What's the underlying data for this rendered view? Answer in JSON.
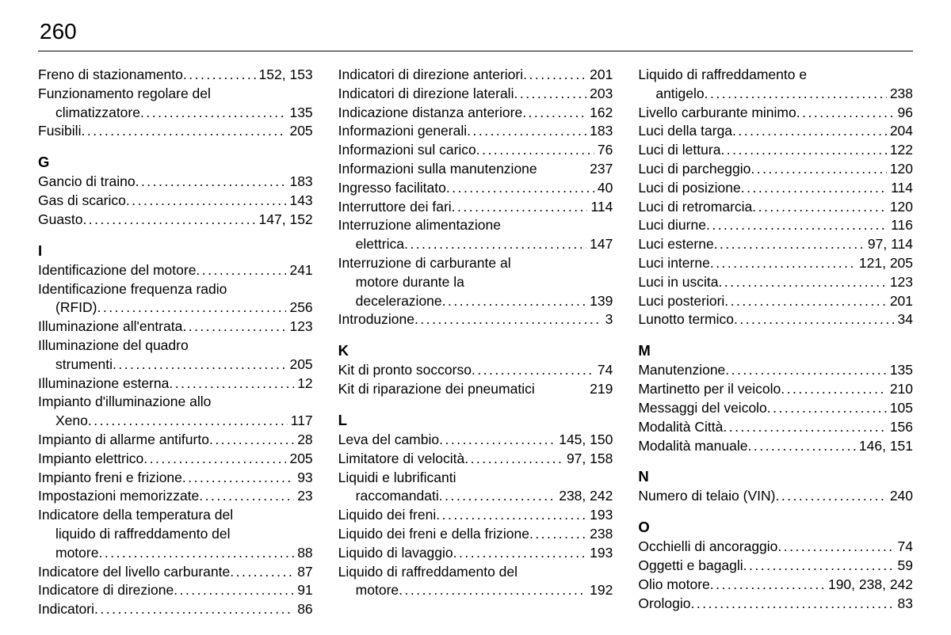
{
  "page_number": "260",
  "columns": [
    {
      "sections": [
        {
          "entries": [
            {
              "label": "Freno di stazionamento",
              "page": "152, 153"
            },
            {
              "label_lines": [
                "Funzionamento regolare del",
                "climatizzatore"
              ],
              "page": "135"
            },
            {
              "label": "Fusibili",
              "page": "205"
            }
          ]
        },
        {
          "letter": "G",
          "entries": [
            {
              "label": "Gancio di traino",
              "page": "183"
            },
            {
              "label": "Gas di scarico",
              "page": "143"
            },
            {
              "label": "Guasto",
              "page": "147, 152"
            }
          ]
        },
        {
          "letter": "I",
          "entries": [
            {
              "label": "Identificazione del motore",
              "page": "241"
            },
            {
              "label_lines": [
                "Identificazione frequenza radio",
                "(RFID)"
              ],
              "page": "256"
            },
            {
              "label": "Illuminazione all'entrata",
              "page": "123"
            },
            {
              "label_lines": [
                "Illuminazione del quadro",
                "strumenti"
              ],
              "page": "205"
            },
            {
              "label": "Illuminazione esterna",
              "page": "12"
            },
            {
              "label_lines": [
                "Impianto d'illuminazione allo",
                "Xeno"
              ],
              "page": "117"
            },
            {
              "label": "Impianto di allarme antifurto",
              "page": "28"
            },
            {
              "label": "Impianto elettrico",
              "page": "205"
            },
            {
              "label": "Impianto freni e frizione",
              "page": "93"
            },
            {
              "label": "Impostazioni memorizzate",
              "page": "23"
            },
            {
              "label_lines": [
                "Indicatore della temperatura del",
                "liquido di raffreddamento del",
                "motore"
              ],
              "page": "88"
            },
            {
              "label": "Indicatore del livello carburante",
              "page": "87"
            },
            {
              "label": "Indicatore di direzione",
              "page": "91"
            },
            {
              "label": "Indicatori",
              "page": "86"
            }
          ]
        }
      ]
    },
    {
      "sections": [
        {
          "entries": [
            {
              "label": "Indicatori di direzione anteriori",
              "page": "201"
            },
            {
              "label": "Indicatori di direzione laterali",
              "page": "203"
            },
            {
              "label": "Indicazione distanza anteriore",
              "page": "162"
            },
            {
              "label": "Informazioni generali",
              "page": "183"
            },
            {
              "label": "Informazioni sul carico",
              "page": "76"
            },
            {
              "label": "Informazioni sulla manutenzione",
              "page": "237",
              "tight": true
            },
            {
              "label": "Ingresso facilitato",
              "page": "40"
            },
            {
              "label": "Interruttore dei fari",
              "page": "114"
            },
            {
              "label_lines": [
                "Interruzione alimentazione",
                "elettrica"
              ],
              "page": "147"
            },
            {
              "label_lines": [
                "Interruzione di carburante al",
                "motore durante la",
                "decelerazione"
              ],
              "page": "139"
            },
            {
              "label": "Introduzione",
              "page": "3"
            }
          ]
        },
        {
          "letter": "K",
          "entries": [
            {
              "label": "Kit di pronto soccorso",
              "page": "74"
            },
            {
              "label": "Kit di riparazione dei pneumatici",
              "page": "219",
              "tight": true
            }
          ]
        },
        {
          "letter": "L",
          "entries": [
            {
              "label": "Leva del cambio",
              "page": "145, 150"
            },
            {
              "label": "Limitatore di velocità",
              "page": "97, 158"
            },
            {
              "label_lines": [
                "Liquidi e lubrificanti",
                "raccomandati"
              ],
              "page": "238, 242"
            },
            {
              "label": "Liquido dei freni",
              "page": "193"
            },
            {
              "label": "Liquido dei freni e della frizione",
              "page": "238"
            },
            {
              "label": "Liquido di lavaggio",
              "page": "193"
            },
            {
              "label_lines": [
                "Liquido di raffreddamento del",
                "motore"
              ],
              "page": "192"
            }
          ]
        }
      ]
    },
    {
      "sections": [
        {
          "entries": [
            {
              "label_lines": [
                "Liquido di raffreddamento e",
                "antigelo"
              ],
              "page": "238"
            },
            {
              "label": "Livello carburante minimo",
              "page": "96"
            },
            {
              "label": "Luci della targa",
              "page": "204"
            },
            {
              "label": "Luci di lettura",
              "page": "122"
            },
            {
              "label": "Luci di parcheggio",
              "page": "120"
            },
            {
              "label": "Luci di posizione",
              "page": "114"
            },
            {
              "label": "Luci di retromarcia",
              "page": "120"
            },
            {
              "label": "Luci diurne",
              "page": "116"
            },
            {
              "label": "Luci esterne",
              "page": "97, 114"
            },
            {
              "label": "Luci interne",
              "page": "121, 205"
            },
            {
              "label": "Luci in uscita",
              "page": "123"
            },
            {
              "label": "Luci posteriori",
              "page": "201"
            },
            {
              "label": "Lunotto termico",
              "page": "34"
            }
          ]
        },
        {
          "letter": "M",
          "entries": [
            {
              "label": "Manutenzione",
              "page": "135"
            },
            {
              "label": "Martinetto per il veicolo",
              "page": "210"
            },
            {
              "label": "Messaggi del veicolo",
              "page": "105"
            },
            {
              "label": "Modalità Città",
              "page": "156"
            },
            {
              "label": "Modalità manuale",
              "page": "146, 151"
            }
          ]
        },
        {
          "letter": "N",
          "entries": [
            {
              "label": "Numero di telaio (VIN)",
              "page": "240"
            }
          ]
        },
        {
          "letter": "O",
          "entries": [
            {
              "label": "Occhielli di ancoraggio",
              "page": "74"
            },
            {
              "label": "Oggetti e bagagli",
              "page": "59"
            },
            {
              "label": "Olio motore",
              "page": "190, 238, 242"
            },
            {
              "label": "Orologio",
              "page": "83"
            }
          ]
        }
      ]
    }
  ]
}
